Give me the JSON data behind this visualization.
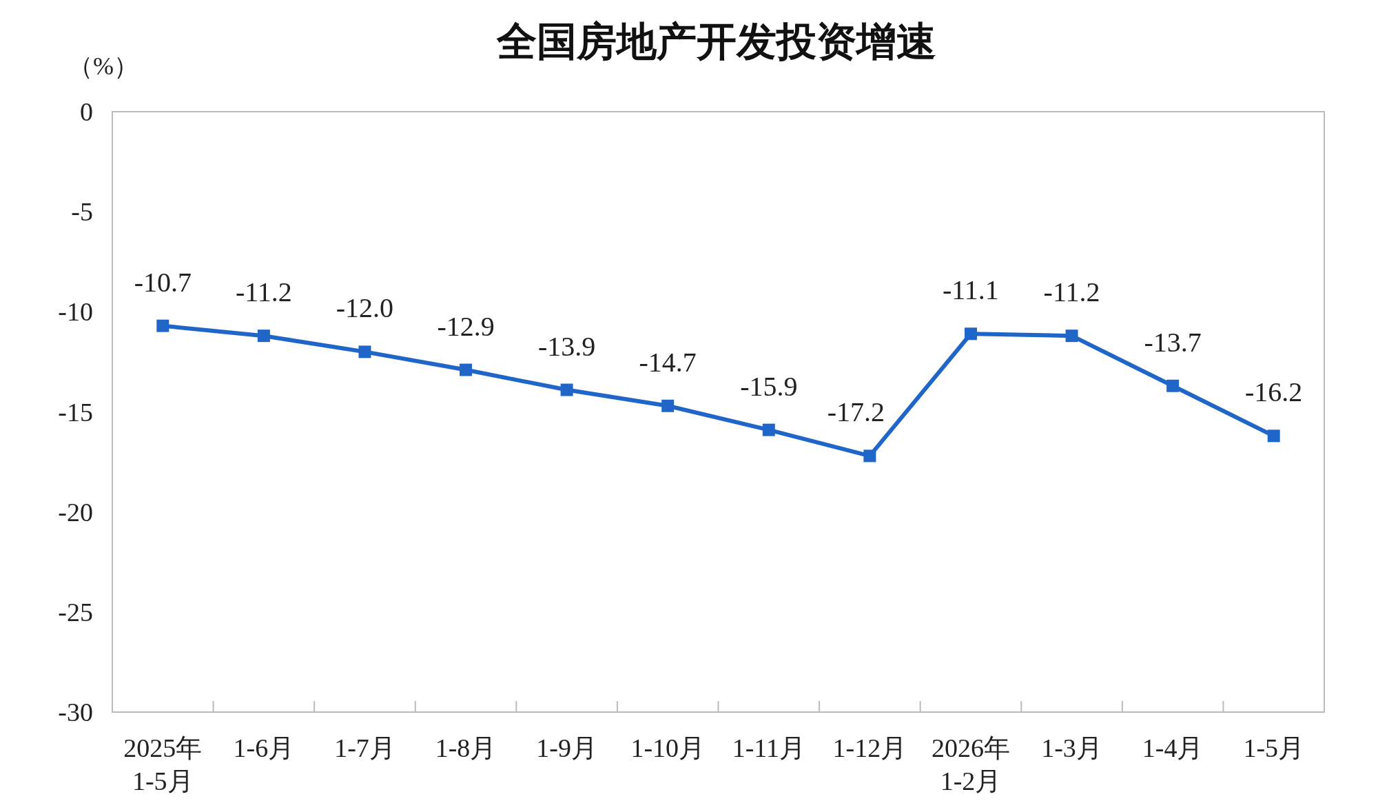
{
  "chart_data": {
    "type": "line",
    "title": "全国房地产开发投资增速",
    "ylabel": "（%）",
    "categories": [
      "2025年\n1-5月",
      "1-6月",
      "1-7月",
      "1-8月",
      "1-9月",
      "1-10月",
      "1-11月",
      "1-12月",
      "2026年\n1-2月",
      "1-3月",
      "1-4月",
      "1-5月"
    ],
    "series": [
      {
        "color": "#1f66c8",
        "values": [
          -10.7,
          -11.2,
          -12.0,
          -12.9,
          -13.9,
          -14.7,
          -15.9,
          -17.2,
          -11.1,
          -11.2,
          -13.7,
          -16.2
        ],
        "value_labels": [
          "-10.7",
          "-11.2",
          "-12.0",
          "-12.9",
          "-13.9",
          "-14.7",
          "-15.9",
          "-17.2",
          "-11.1",
          "-11.2",
          "-13.7",
          "-16.2"
        ]
      }
    ],
    "ylim": [
      -30,
      0
    ],
    "yticks": [
      0,
      -5,
      -10,
      -15,
      -20,
      -25,
      -30
    ],
    "marker": "square",
    "line_style": "solid"
  }
}
